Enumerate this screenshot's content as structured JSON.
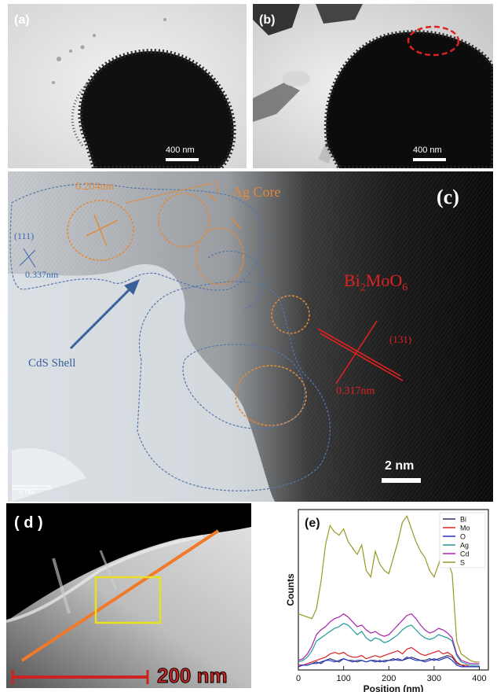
{
  "figure": {
    "panels": {
      "a": {
        "label": "(a)",
        "scale_text": "400 nm"
      },
      "b": {
        "label": "(b)",
        "scale_text": "400 nm"
      },
      "c": {
        "label": "(c)",
        "scale_text": "2 nm",
        "corner_scale_text": "5 nm",
        "annotations": {
          "ag_core": "Ag Core",
          "ag_spacing": "0.204nm",
          "cds_plane": "(111)",
          "cds_spacing": "0.337nm",
          "cds_shell": "CdS Shell",
          "bmo_name_main": "Bi",
          "bmo_sub1": "2",
          "bmo_mid": "MoO",
          "bmo_sub2": "6",
          "bmo_plane": "(131)",
          "bmo_spacing": "0.317nm"
        }
      },
      "d": {
        "label": "( d )",
        "scale_text": "200 nm"
      },
      "e": {
        "label": "(e)"
      }
    }
  },
  "chart_data": {
    "type": "line",
    "title": "",
    "xlabel": "Position (nm)",
    "ylabel": "Counts",
    "xlim": [
      0,
      420
    ],
    "ylim": [
      0,
      100
    ],
    "xticks": [
      0,
      100,
      200,
      300,
      400
    ],
    "legend_position": "top-right",
    "x": [
      0,
      10,
      20,
      30,
      40,
      50,
      60,
      70,
      80,
      90,
      100,
      110,
      120,
      130,
      140,
      150,
      160,
      170,
      180,
      190,
      200,
      210,
      220,
      230,
      240,
      250,
      260,
      270,
      280,
      290,
      300,
      310,
      320,
      330,
      340,
      350,
      360,
      370,
      380,
      390,
      400
    ],
    "series": [
      {
        "name": "Bi",
        "color": "#333366",
        "values": [
          3,
          3,
          3,
          4,
          5,
          4,
          6,
          7,
          6,
          5,
          7,
          6,
          6,
          5,
          6,
          5,
          6,
          6,
          5,
          6,
          6,
          7,
          6,
          6,
          7,
          8,
          7,
          6,
          6,
          7,
          6,
          7,
          8,
          9,
          8,
          4,
          3,
          2,
          2,
          2,
          2
        ]
      },
      {
        "name": "Mo",
        "color": "#dd2222",
        "values": [
          3,
          3,
          4,
          5,
          6,
          7,
          8,
          10,
          11,
          10,
          11,
          9,
          8,
          8,
          9,
          7,
          8,
          9,
          8,
          9,
          10,
          11,
          12,
          10,
          13,
          14,
          12,
          10,
          9,
          10,
          11,
          12,
          10,
          11,
          9,
          5,
          3,
          3,
          2,
          2,
          2
        ]
      },
      {
        "name": "O",
        "color": "#2233cc",
        "values": [
          2,
          3,
          3,
          4,
          4,
          5,
          6,
          6,
          5,
          6,
          7,
          6,
          5,
          6,
          6,
          5,
          6,
          5,
          6,
          5,
          6,
          6,
          7,
          6,
          8,
          7,
          6,
          6,
          5,
          6,
          7,
          6,
          7,
          8,
          6,
          3,
          2,
          2,
          2,
          2,
          2
        ]
      },
      {
        "name": "Ag",
        "color": "#229999",
        "values": [
          5,
          6,
          8,
          12,
          18,
          20,
          22,
          24,
          26,
          27,
          29,
          28,
          25,
          22,
          24,
          20,
          18,
          20,
          19,
          17,
          18,
          20,
          22,
          25,
          27,
          28,
          25,
          22,
          20,
          19,
          20,
          22,
          21,
          20,
          18,
          9,
          5,
          4,
          3,
          3,
          3
        ]
      },
      {
        "name": "Cd",
        "color": "#aa22aa",
        "values": [
          6,
          7,
          10,
          15,
          22,
          25,
          27,
          30,
          32,
          33,
          35,
          33,
          30,
          27,
          28,
          25,
          23,
          24,
          22,
          21,
          22,
          25,
          28,
          31,
          34,
          35,
          32,
          28,
          25,
          23,
          24,
          26,
          25,
          23,
          20,
          10,
          6,
          5,
          4,
          4,
          4
        ]
      },
      {
        "name": "S",
        "color": "#999922",
        "values": [
          35,
          34,
          33,
          32,
          38,
          55,
          78,
          90,
          86,
          84,
          88,
          80,
          76,
          72,
          78,
          62,
          58,
          74,
          66,
          62,
          60,
          70,
          80,
          92,
          96,
          88,
          80,
          74,
          70,
          62,
          58,
          66,
          74,
          68,
          60,
          18,
          10,
          8,
          6,
          5,
          5
        ]
      }
    ]
  }
}
